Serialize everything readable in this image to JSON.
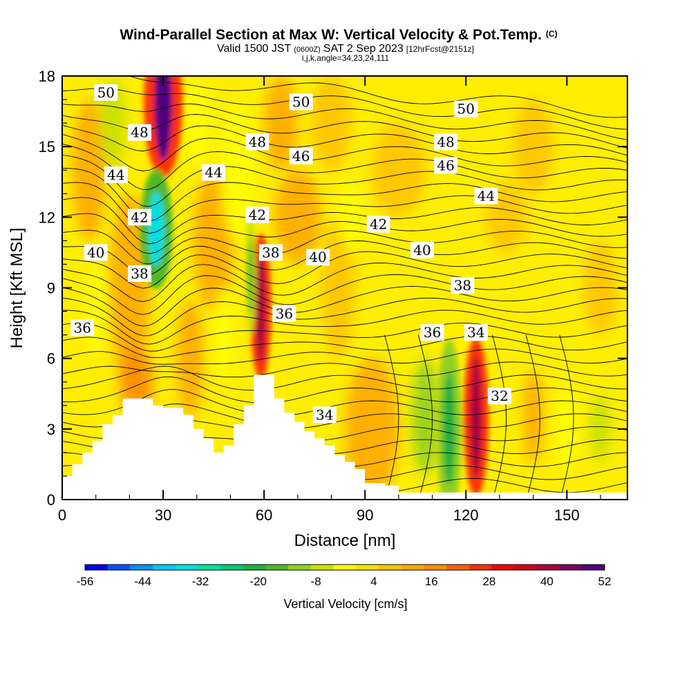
{
  "chart_data": {
    "type": "heatmap",
    "title": "Wind-Parallel Section at Max W: Vertical Velocity & Pot.Temp.",
    "title_mark": "(C)",
    "subtitle_parts": [
      "Valid 1500 JST",
      "(0600Z)",
      "SAT 2 Sep 2023",
      "[12hrFcst@2151z]"
    ],
    "subtitle2": "i,j,k,angle=34,23,24,111",
    "xlabel": "Distance [nm]",
    "ylabel": "Height [Kft MSL]",
    "xlim": [
      0,
      168
    ],
    "ylim": [
      0,
      18
    ],
    "x_ticks": [
      "0",
      "30",
      "60",
      "90",
      "120",
      "150"
    ],
    "y_ticks": [
      "0",
      "3",
      "6",
      "9",
      "12",
      "15",
      "18"
    ],
    "colorbar": {
      "label": "Vertical Velocity [cm/s]",
      "ticks": [
        "-56",
        "-44",
        "-32",
        "-20",
        "-8",
        "4",
        "16",
        "28",
        "40",
        "52"
      ],
      "range": [
        -56,
        52
      ],
      "colors": [
        "#0000ff",
        "#0050ff",
        "#0090ff",
        "#00c8ff",
        "#00e0e0",
        "#00e0a0",
        "#00c878",
        "#20b040",
        "#50b828",
        "#90d020",
        "#c8e000",
        "#ffff00",
        "#ffe000",
        "#ffc400",
        "#ffa800",
        "#ff8c00",
        "#ff6000",
        "#ff3000",
        "#f00000",
        "#d0001c",
        "#a8003c",
        "#7a0060",
        "#500080"
      ]
    },
    "contour_labels": [
      {
        "text": "50",
        "x": 13,
        "y": 17.3
      },
      {
        "text": "50",
        "x": 71,
        "y": 16.9
      },
      {
        "text": "50",
        "x": 120,
        "y": 16.6
      },
      {
        "text": "48",
        "x": 23,
        "y": 15.6
      },
      {
        "text": "48",
        "x": 58,
        "y": 15.2
      },
      {
        "text": "48",
        "x": 114,
        "y": 15.2
      },
      {
        "text": "46",
        "x": 71,
        "y": 14.6
      },
      {
        "text": "46",
        "x": 114,
        "y": 14.2
      },
      {
        "text": "44",
        "x": 16,
        "y": 13.8
      },
      {
        "text": "44",
        "x": 45,
        "y": 13.9
      },
      {
        "text": "44",
        "x": 126,
        "y": 12.9
      },
      {
        "text": "42",
        "x": 23,
        "y": 12.0
      },
      {
        "text": "42",
        "x": 58,
        "y": 12.1
      },
      {
        "text": "42",
        "x": 94,
        "y": 11.7
      },
      {
        "text": "40",
        "x": 10,
        "y": 10.5
      },
      {
        "text": "40",
        "x": 76,
        "y": 10.3
      },
      {
        "text": "40",
        "x": 107,
        "y": 10.6
      },
      {
        "text": "38",
        "x": 23,
        "y": 9.6
      },
      {
        "text": "38",
        "x": 62,
        "y": 10.5
      },
      {
        "text": "38",
        "x": 119,
        "y": 9.1
      },
      {
        "text": "36",
        "x": 6,
        "y": 7.3
      },
      {
        "text": "36",
        "x": 66,
        "y": 7.9
      },
      {
        "text": "36",
        "x": 110,
        "y": 7.1
      },
      {
        "text": "34",
        "x": 123,
        "y": 7.1
      },
      {
        "text": "34",
        "x": 78,
        "y": 3.6
      },
      {
        "text": "32",
        "x": 130,
        "y": 4.4
      }
    ],
    "updraft_cores": [
      {
        "x": 30,
        "y": 16.8,
        "value": 52
      },
      {
        "x": 59,
        "y": 8.2,
        "value": 40
      },
      {
        "x": 123,
        "y": 3.5,
        "value": 40
      }
    ],
    "downdraft_cores": [
      {
        "x": 28,
        "y": 11.5,
        "value": -35
      },
      {
        "x": 115,
        "y": 3.0,
        "value": -20
      },
      {
        "x": 56,
        "y": 9.5,
        "value": -15
      }
    ],
    "terrain": [
      [
        0,
        1
      ],
      [
        3,
        1
      ],
      [
        3,
        1.5
      ],
      [
        6,
        1.5
      ],
      [
        6,
        2
      ],
      [
        9,
        2
      ],
      [
        9,
        2.5
      ],
      [
        12,
        2.5
      ],
      [
        12,
        3.2
      ],
      [
        15,
        3.2
      ],
      [
        15,
        3.6
      ],
      [
        18,
        3.6
      ],
      [
        18,
        4.3
      ],
      [
        27,
        4.3
      ],
      [
        27,
        4.0
      ],
      [
        30,
        4.0
      ],
      [
        30,
        3.9
      ],
      [
        36,
        3.9
      ],
      [
        36,
        3.6
      ],
      [
        39,
        3.6
      ],
      [
        39,
        3.0
      ],
      [
        42,
        3.0
      ],
      [
        42,
        2.6
      ],
      [
        45,
        2.6
      ],
      [
        45,
        2.0
      ],
      [
        48,
        2.0
      ],
      [
        48,
        2.3
      ],
      [
        51,
        2.3
      ],
      [
        51,
        3.2
      ],
      [
        54,
        3.2
      ],
      [
        54,
        4.0
      ],
      [
        57,
        4.0
      ],
      [
        57,
        5.3
      ],
      [
        63,
        5.3
      ],
      [
        63,
        4.3
      ],
      [
        66,
        4.3
      ],
      [
        66,
        3.7
      ],
      [
        69,
        3.7
      ],
      [
        69,
        3.3
      ],
      [
        72,
        3.3
      ],
      [
        72,
        2.9
      ],
      [
        75,
        2.9
      ],
      [
        75,
        2.6
      ],
      [
        78,
        2.6
      ],
      [
        78,
        2.3
      ],
      [
        81,
        2.3
      ],
      [
        81,
        1.9
      ],
      [
        84,
        1.9
      ],
      [
        84,
        1.6
      ],
      [
        87,
        1.6
      ],
      [
        87,
        1.3
      ],
      [
        90,
        1.3
      ],
      [
        90,
        0.7
      ],
      [
        96,
        0.7
      ],
      [
        96,
        0.6
      ],
      [
        100,
        0.6
      ],
      [
        100,
        0.3
      ],
      [
        168,
        0.3
      ]
    ]
  }
}
